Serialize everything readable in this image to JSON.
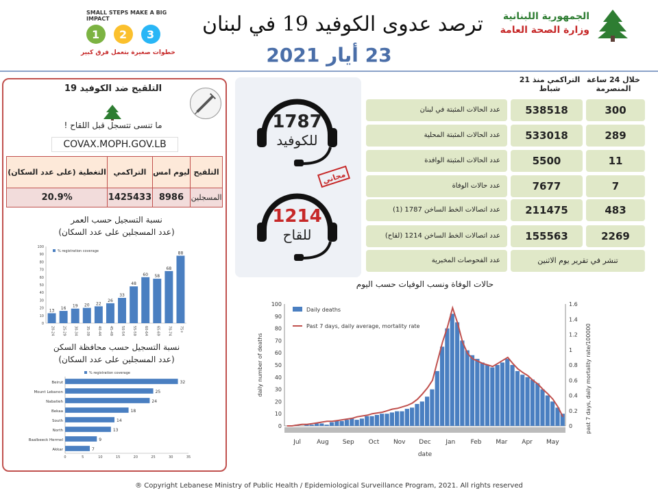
{
  "header": {
    "title": "ترصد عدوى الكوفيد 19 في لبنان",
    "date": "23 أيار 2021",
    "ministry_line1": "الجمهورية اللبنانية",
    "ministry_line2": "وزارة الصحة العامة",
    "campaign_line1": "SMALL STEPS MAKE A BIG IMPACT",
    "campaign_line2": "خطوات صغيرة بتعمل فرق كبير"
  },
  "vaccine": {
    "title": "التلقيح ضد الكوفيد 19",
    "message": "ما تنسى تتسجل قبل اللقاح !",
    "url": "COVAX.MOPH.GOV.LB",
    "headers": {
      "vaccination": "التلقيح",
      "yesterday": "ليوم امس",
      "cumulative": "التراكمي",
      "coverage": "التغطية (على عدد السكان)"
    },
    "row": {
      "label": "المسجلين",
      "yesterday": "8986",
      "cumulative": "1425433",
      "coverage": "20.9%"
    },
    "age_title": "نسبة التسجيل حسب العمر",
    "age_subtitle": "(عدد المسجلين على عدد السكان)",
    "gov_title": "نسبة التسجيل حسب محافظة السكن",
    "gov_subtitle": "(عدد المسجلين على عدد السكان)"
  },
  "hotlines": {
    "covid_number": "1787",
    "covid_label": "للكوفيد",
    "vaccine_number": "1214",
    "vaccine_label": "للقاح",
    "stamp_text": "مجاني"
  },
  "stats": {
    "head_24h": "خلال 24 ساعة المنصرمة",
    "head_cum": "التراكمي منذ 21 شباط",
    "rows": [
      {
        "label": "عدد الحالات المثبتة في لبنان",
        "cum": "538518",
        "day": "300"
      },
      {
        "label": "عدد الحالات المثبتة المحلية",
        "cum": "533018",
        "day": "289"
      },
      {
        "label": "عدد الحالات المثبتة الوافدة",
        "cum": "5500",
        "day": "11"
      },
      {
        "label": "عدد حالات الوفاة",
        "cum": "7677",
        "day": "7"
      },
      {
        "label": "عدد اتصالات الخط الساخن 1787 (1)",
        "cum": "211475",
        "day": "483"
      },
      {
        "label": "عدد اتصالات الخط الساخن 1214 (لقاح)",
        "cum": "155563",
        "day": "2269"
      },
      {
        "label": "عدد الفحوصات المخبرية",
        "wide": "تنشر في تقرير يوم الاثنين"
      }
    ]
  },
  "colors": {
    "accent": "#4a6ea8",
    "panel_border": "#c0504d",
    "stat_bg": "#e0e8c8",
    "bar": "#4a7fc1",
    "line": "#c0504d"
  },
  "chart_data": [
    {
      "type": "bar",
      "legend": "% registration coverage",
      "categories": [
        "20-24",
        "25-29",
        "30-34",
        "35-39",
        "40-44",
        "45-49",
        "50-54",
        "55-59",
        "60-64",
        "65-69",
        "70-74",
        "75+"
      ],
      "values": [
        13,
        16,
        19,
        20,
        22,
        26,
        33,
        48,
        60,
        58,
        68,
        88
      ],
      "ylim": [
        0,
        100
      ],
      "yticks": [
        "0",
        "10",
        "20",
        "30",
        "40",
        "50",
        "60",
        "70",
        "80",
        "90",
        "100"
      ]
    },
    {
      "type": "bar",
      "orientation": "horizontal",
      "legend": "% registration coverage",
      "categories": [
        "Beirut",
        "Mount Lebanon",
        "Nabatieh",
        "Bekaa",
        "South",
        "North",
        "Baalbeeck Hermel",
        "Akkar"
      ],
      "values": [
        32,
        25,
        24,
        18,
        14,
        13,
        9,
        7
      ],
      "xlim": [
        0,
        35
      ],
      "xticks": [
        "0",
        "5",
        "10",
        "15",
        "20",
        "25",
        "30",
        "35"
      ]
    },
    {
      "type": "bar+line",
      "title": "حالات الوفاة ونسب الوفيات حسب اليوم",
      "xlabel": "date",
      "ylabel": "daily number of deaths",
      "y2label": "past 7 days, daily mortality rate/100000",
      "ylim": [
        0,
        100
      ],
      "y2lim": [
        0,
        1.6
      ],
      "yticks": [
        "0",
        "10",
        "20",
        "30",
        "40",
        "50",
        "60",
        "70",
        "80",
        "90",
        "100"
      ],
      "y2ticks": [
        "0",
        "0.2",
        "0.4",
        "0.6",
        "0.8",
        "1",
        "1.2",
        "1.4",
        "1.6"
      ],
      "months": [
        "Jul",
        "Aug",
        "Sep",
        "Oct",
        "Nov",
        "Dec",
        "Jan",
        "Feb",
        "Mar",
        "Apr",
        "May"
      ],
      "series": [
        {
          "name": "Daily deaths",
          "values": [
            0,
            0,
            1,
            0,
            1,
            1,
            2,
            2,
            1,
            3,
            4,
            4,
            5,
            6,
            5,
            6,
            8,
            8,
            9,
            10,
            10,
            11,
            12,
            12,
            14,
            15,
            18,
            20,
            24,
            30,
            45,
            65,
            80,
            92,
            85,
            70,
            62,
            58,
            55,
            52,
            50,
            48,
            50,
            52,
            55,
            50,
            45,
            42,
            40,
            38,
            35,
            30,
            25,
            20,
            15,
            10
          ]
        },
        {
          "name": "Past 7 days, daily average, mortality rate",
          "values": [
            0,
            0,
            0.01,
            0.02,
            0.02,
            0.03,
            0.04,
            0.05,
            0.06,
            0.06,
            0.07,
            0.08,
            0.09,
            0.1,
            0.12,
            0.13,
            0.14,
            0.16,
            0.17,
            0.18,
            0.2,
            0.22,
            0.23,
            0.25,
            0.27,
            0.3,
            0.35,
            0.42,
            0.5,
            0.6,
            0.85,
            1.1,
            1.3,
            1.55,
            1.35,
            1.1,
            0.95,
            0.88,
            0.85,
            0.82,
            0.8,
            0.78,
            0.82,
            0.86,
            0.9,
            0.82,
            0.75,
            0.7,
            0.66,
            0.6,
            0.55,
            0.48,
            0.42,
            0.35,
            0.25,
            0.12
          ]
        }
      ]
    }
  ],
  "footer": "® Copyright Lebanese Ministry of Public Health / Epidemiological Surveillance Program, 2021. All rights reserved"
}
